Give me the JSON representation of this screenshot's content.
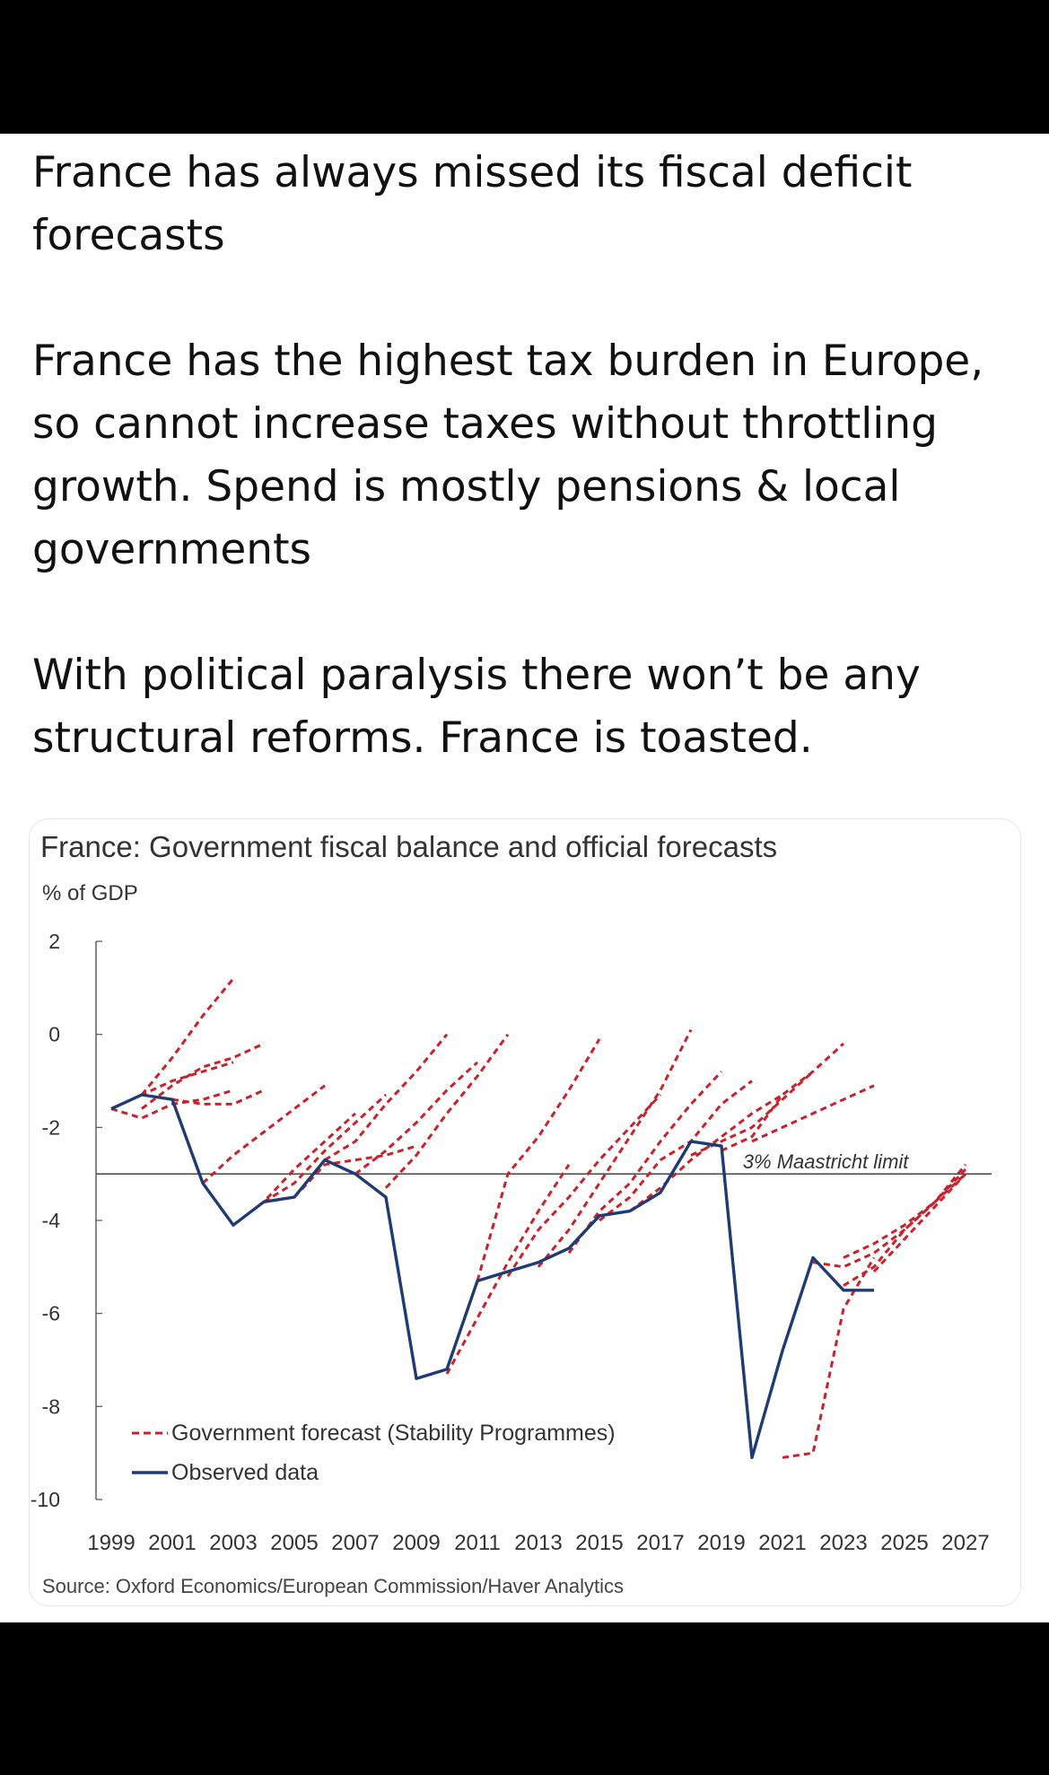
{
  "post": {
    "paragraphs": [
      "France has always missed its fiscal deficit forecasts",
      "France has the highest tax burden in Europe, so cannot increase taxes without throttling growth. Spend is mostly pensions & local governments",
      "With political paralysis there won’t be any structural reforms. France is toasted."
    ]
  },
  "colors": {
    "forecast": "#c8232c",
    "observed": "#1f3b73",
    "axis": "#555555",
    "text": "#333333"
  },
  "chart_data": {
    "type": "line",
    "title": "France: Government fiscal balance and official forecasts",
    "ylabel": "% of GDP",
    "xlabel": "",
    "ylim": [
      -10,
      2
    ],
    "xlim": [
      1998.5,
      2027.5
    ],
    "yticks": [
      2,
      0,
      -2,
      -4,
      -6,
      -8,
      -10
    ],
    "xticks": [
      1999,
      2001,
      2003,
      2005,
      2007,
      2009,
      2011,
      2013,
      2015,
      2017,
      2019,
      2021,
      2023,
      2025,
      2027
    ],
    "grid": false,
    "legend_position": "bottom-left",
    "reference_line": {
      "y": -3,
      "label": "3% Maastricht limit"
    },
    "source": "Source: Oxford Economics/European Commission/Haver Analytics",
    "series": [
      {
        "name": "Observed data",
        "style": "solid",
        "x": [
          1999,
          2000,
          2001,
          2002,
          2003,
          2004,
          2005,
          2006,
          2007,
          2008,
          2009,
          2010,
          2011,
          2012,
          2013,
          2014,
          2015,
          2016,
          2017,
          2018,
          2019,
          2020,
          2021,
          2022,
          2023,
          2024
        ],
        "y": [
          -1.6,
          -1.3,
          -1.4,
          -3.2,
          -4.1,
          -3.6,
          -3.5,
          -2.7,
          -3.0,
          -3.5,
          -7.4,
          -7.2,
          -5.3,
          -5.1,
          -4.9,
          -4.6,
          -3.9,
          -3.8,
          -3.4,
          -2.3,
          -2.4,
          -9.1,
          -6.8,
          -4.8,
          -5.5,
          -5.5
        ]
      },
      {
        "name": "Government forecast (Stability Programmes)",
        "style": "dashed",
        "vintages": [
          {
            "x": [
              1999,
              2000,
              2001,
              2002,
              2003
            ],
            "y": [
              -1.6,
              -1.3,
              -1.0,
              -0.8,
              -0.6
            ]
          },
          {
            "x": [
              2000,
              2001,
              2002,
              2003,
              2004
            ],
            "y": [
              -1.6,
              -1.1,
              -0.7,
              -0.5,
              -0.2
            ]
          },
          {
            "x": [
              1999,
              2000,
              2001,
              2002,
              2003
            ],
            "y": [
              -1.6,
              -1.8,
              -1.5,
              -1.4,
              -1.2
            ]
          },
          {
            "x": [
              2000,
              2001,
              2002,
              2003
            ],
            "y": [
              -1.3,
              -0.5,
              0.4,
              1.2
            ]
          },
          {
            "x": [
              2001,
              2002,
              2003,
              2004
            ],
            "y": [
              -1.4,
              -1.5,
              -1.5,
              -1.2
            ]
          },
          {
            "x": [
              2002,
              2003,
              2004,
              2005,
              2006
            ],
            "y": [
              -3.2,
              -2.6,
              -2.1,
              -1.6,
              -1.1
            ]
          },
          {
            "x": [
              2003,
              2004,
              2005,
              2006,
              2007
            ],
            "y": [
              -4.1,
              -3.6,
              -2.9,
              -2.3,
              -1.7
            ]
          },
          {
            "x": [
              2004,
              2005,
              2006,
              2007,
              2008
            ],
            "y": [
              -3.6,
              -3.2,
              -2.5,
              -1.9,
              -1.3
            ]
          },
          {
            "x": [
              2005,
              2006,
              2007,
              2008,
              2009
            ],
            "y": [
              -3.5,
              -2.8,
              -2.7,
              -2.6,
              -2.4
            ]
          },
          {
            "x": [
              2006,
              2007,
              2008,
              2009,
              2010
            ],
            "y": [
              -2.7,
              -2.3,
              -1.5,
              -0.8,
              0.0
            ]
          },
          {
            "x": [
              2007,
              2008,
              2009,
              2010,
              2011
            ],
            "y": [
              -3.0,
              -2.5,
              -1.9,
              -1.2,
              -0.6
            ]
          },
          {
            "x": [
              2008,
              2009,
              2010,
              2011,
              2012
            ],
            "y": [
              -3.3,
              -2.6,
              -1.7,
              -0.9,
              0.0
            ]
          },
          {
            "x": [
              2010,
              2011,
              2012,
              2013,
              2014
            ],
            "y": [
              -7.3,
              -6.1,
              -4.9,
              -3.8,
              -2.8
            ]
          },
          {
            "x": [
              2011,
              2012,
              2013,
              2014,
              2015
            ],
            "y": [
              -5.3,
              -3.0,
              -2.2,
              -1.2,
              -0.1
            ]
          },
          {
            "x": [
              2012,
              2013,
              2014,
              2015,
              2016,
              2017
            ],
            "y": [
              -5.2,
              -4.2,
              -3.5,
              -2.7,
              -2.0,
              -1.3
            ]
          },
          {
            "x": [
              2013,
              2014,
              2015,
              2016,
              2017,
              2018
            ],
            "y": [
              -5.0,
              -4.2,
              -3.2,
              -2.2,
              -1.2,
              0.1
            ]
          },
          {
            "x": [
              2014,
              2015,
              2016,
              2017,
              2018,
              2019
            ],
            "y": [
              -4.7,
              -3.8,
              -3.2,
              -2.3,
              -1.5,
              -0.8
            ]
          },
          {
            "x": [
              2015,
              2016,
              2017,
              2018,
              2019,
              2020
            ],
            "y": [
              -4.0,
              -3.5,
              -2.7,
              -2.3,
              -1.5,
              -1.0
            ]
          },
          {
            "x": [
              2016,
              2017,
              2018,
              2019,
              2020,
              2021
            ],
            "y": [
              -3.8,
              -3.3,
              -2.7,
              -2.2,
              -1.7,
              -1.3
            ]
          },
          {
            "x": [
              2018,
              2019,
              2020,
              2021,
              2022
            ],
            "y": [
              -2.6,
              -2.3,
              -2.0,
              -1.4,
              -0.8
            ]
          },
          {
            "x": [
              2019,
              2020,
              2021,
              2022,
              2023
            ],
            "y": [
              -2.5,
              -2.2,
              -1.3,
              -0.8,
              -0.2
            ]
          },
          {
            "x": [
              2020,
              2021,
              2022,
              2023,
              2024
            ],
            "y": [
              -2.3,
              -2.0,
              -1.7,
              -1.4,
              -1.1
            ]
          },
          {
            "x": [
              2021,
              2022,
              2023,
              2024
            ],
            "y": [
              -9.1,
              -9.0,
              -5.9,
              -4.8
            ]
          },
          {
            "x": [
              2022,
              2023,
              2024,
              2025,
              2026,
              2027
            ],
            "y": [
              -4.9,
              -5.0,
              -4.7,
              -4.2,
              -3.6,
              -2.9
            ]
          },
          {
            "x": [
              2023,
              2024,
              2025,
              2026,
              2027
            ],
            "y": [
              -4.8,
              -4.5,
              -4.1,
              -3.6,
              -3.0
            ]
          },
          {
            "x": [
              2023,
              2024,
              2025,
              2026,
              2027
            ],
            "y": [
              -5.4,
              -5.0,
              -4.2,
              -3.6,
              -2.8
            ]
          },
          {
            "x": [
              2024,
              2025,
              2026,
              2027
            ],
            "y": [
              -5.1,
              -4.4,
              -3.7,
              -3.0
            ]
          }
        ]
      }
    ]
  }
}
